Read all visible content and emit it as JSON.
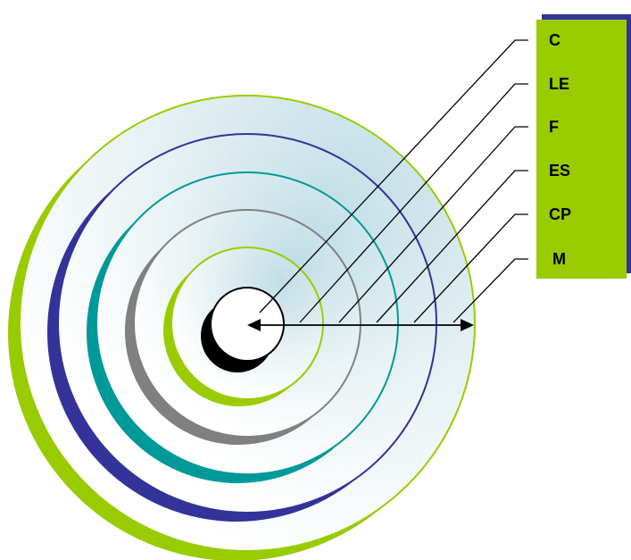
{
  "diagram": {
    "labels": [
      "C",
      "LE",
      "F",
      "ES",
      "CP",
      "M"
    ],
    "colors": {
      "outer_ring": "#99cc00",
      "ring_2": "#333399",
      "ring_3": "#009999",
      "ring_4": "#808080",
      "ring_5": "#99cc00",
      "core": "#000000",
      "fill_light": "#ffffff",
      "fill_tint": "#bfdde6",
      "label_box": "#99cc00",
      "label_box_shadow": "#333399"
    }
  }
}
